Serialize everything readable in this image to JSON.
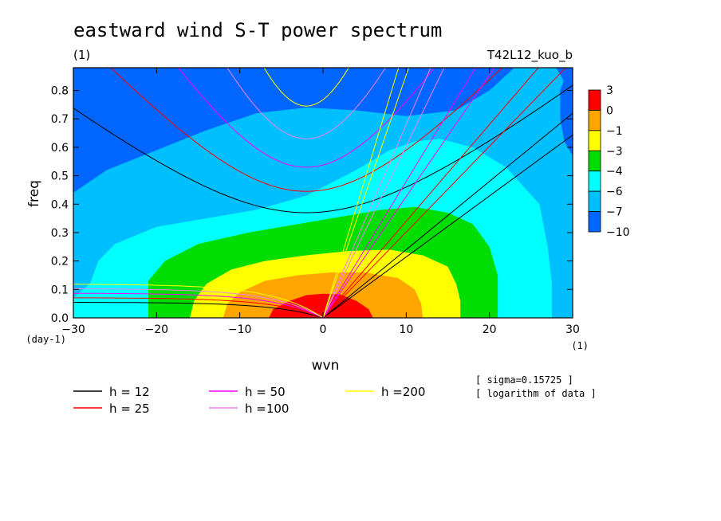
{
  "header": {
    "title": "eastward wind S-T power spectrum",
    "subtitle": "(1)",
    "experiment": "T42L12_kuo_b"
  },
  "notes": {
    "sigma": "[ sigma=0.15725 ]",
    "log": "[ logarithm of data ]"
  },
  "chart_data": {
    "type": "heatmap",
    "xlabel": "wvn",
    "ylabel": "freq",
    "x_unit": "(1)",
    "y_unit": "(day-1)",
    "xlim": [
      -30,
      30
    ],
    "ylim": [
      0,
      0.88
    ],
    "x_ticks": [
      -30,
      -20,
      -10,
      0,
      10,
      20,
      30
    ],
    "x_tick_labels": [
      "−30",
      "−20",
      "−10",
      "0",
      "10",
      "20",
      "30"
    ],
    "y_ticks": [
      0,
      0.1,
      0.2,
      0.3,
      0.4,
      0.5,
      0.6,
      0.7,
      0.8
    ],
    "y_tick_labels": [
      "0.0",
      "0.1",
      "0.2",
      "0.3",
      "0.4",
      "0.5",
      "0.6",
      "0.7",
      "0.8"
    ],
    "colorbar": {
      "labels": [
        "3",
        "0",
        "−1",
        "−3",
        "−4",
        "−6",
        "−7",
        "−10"
      ],
      "colors": [
        "#ff0000",
        "#ffa500",
        "#ffff00",
        "#00dd00",
        "#00ffff",
        "#00bfff",
        "#0066ff"
      ]
    },
    "regions": [
      {
        "level": "−7",
        "color": "#00bfff",
        "points": [
          [
            -30,
            0
          ],
          [
            -30,
            0.44
          ],
          [
            -26,
            0.52
          ],
          [
            -20,
            0.59
          ],
          [
            -14,
            0.66
          ],
          [
            -8,
            0.72
          ],
          [
            -2,
            0.74
          ],
          [
            4,
            0.73
          ],
          [
            10,
            0.71
          ],
          [
            16,
            0.73
          ],
          [
            20,
            0.8
          ],
          [
            23,
            0.88
          ],
          [
            28,
            0.88
          ],
          [
            29,
            0.83
          ],
          [
            30,
            0.78
          ],
          [
            30,
            0
          ]
        ]
      },
      {
        "level": "−6",
        "color": "#00ffff",
        "points": [
          [
            -30,
            0
          ],
          [
            -30,
            0.07
          ],
          [
            -28,
            0.12
          ],
          [
            -27,
            0.2
          ],
          [
            -25,
            0.26
          ],
          [
            -20,
            0.32
          ],
          [
            -14,
            0.35
          ],
          [
            -8,
            0.38
          ],
          [
            -2,
            0.43
          ],
          [
            4,
            0.52
          ],
          [
            8,
            0.59
          ],
          [
            11,
            0.62
          ],
          [
            14,
            0.63
          ],
          [
            18,
            0.6
          ],
          [
            22,
            0.53
          ],
          [
            26,
            0.4
          ],
          [
            27,
            0.25
          ],
          [
            27.5,
            0.12
          ],
          [
            27.5,
            0
          ]
        ]
      },
      {
        "level": "−4",
        "color": "#00dd00",
        "points": [
          [
            -21,
            0
          ],
          [
            -21,
            0.13
          ],
          [
            -19,
            0.2
          ],
          [
            -15,
            0.26
          ],
          [
            -9,
            0.3
          ],
          [
            -3,
            0.33
          ],
          [
            3,
            0.36
          ],
          [
            7,
            0.38
          ],
          [
            11,
            0.39
          ],
          [
            15,
            0.37
          ],
          [
            18,
            0.33
          ],
          [
            20,
            0.25
          ],
          [
            21,
            0.15
          ],
          [
            21,
            0
          ]
        ]
      },
      {
        "level": "−3",
        "color": "#ffff00",
        "points": [
          [
            -16,
            0
          ],
          [
            -15.5,
            0.06
          ],
          [
            -14,
            0.12
          ],
          [
            -11,
            0.17
          ],
          [
            -7,
            0.2
          ],
          [
            -2,
            0.22
          ],
          [
            3,
            0.235
          ],
          [
            8,
            0.24
          ],
          [
            12,
            0.22
          ],
          [
            15,
            0.18
          ],
          [
            16,
            0.12
          ],
          [
            16.5,
            0.06
          ],
          [
            16.5,
            0
          ]
        ]
      },
      {
        "level": "−1",
        "color": "#ffa500",
        "points": [
          [
            -12,
            0
          ],
          [
            -11.5,
            0.05
          ],
          [
            -10,
            0.09
          ],
          [
            -7,
            0.13
          ],
          [
            -3,
            0.15
          ],
          [
            1,
            0.16
          ],
          [
            5,
            0.16
          ],
          [
            9,
            0.14
          ],
          [
            11,
            0.1
          ],
          [
            11.8,
            0.05
          ],
          [
            12,
            0
          ]
        ]
      },
      {
        "level": "0",
        "color": "#ff0000",
        "points": [
          [
            -6.5,
            0
          ],
          [
            -6,
            0.03
          ],
          [
            -4,
            0.06
          ],
          [
            -2,
            0.08
          ],
          [
            0,
            0.085
          ],
          [
            2,
            0.083
          ],
          [
            4,
            0.06
          ],
          [
            5.5,
            0.03
          ],
          [
            6,
            0
          ]
        ]
      },
      {
        "level": "−10",
        "color": "#0066ff",
        "points": [
          [
            -30,
            0.52
          ],
          [
            -27,
            0.6
          ],
          [
            -24,
            0.7
          ],
          [
            -22,
            0.8
          ],
          [
            -21,
            0.88
          ],
          [
            -30,
            0.88
          ]
        ]
      },
      {
        "level": "−10",
        "color": "#0066ff",
        "points": [
          [
            29.5,
            0.88
          ],
          [
            28.5,
            0.8
          ],
          [
            28.5,
            0.7
          ],
          [
            29,
            0.62
          ],
          [
            30,
            0.57
          ],
          [
            30,
            0.88
          ]
        ]
      }
    ],
    "series": [
      {
        "name": "h = 12",
        "color": "#000000",
        "sym_min": 0.37,
        "k_max": 0.78,
        "steep_slope": 0.024,
        "steep_label": 0.0233
      },
      {
        "name": "h = 25",
        "color": "#ff0000",
        "sym_min": 0.445,
        "k_max": 0.95,
        "steep_slope": 0.034,
        "steep_label": 0.0328
      },
      {
        "name": "h = 50",
        "color": "#ff00ff",
        "sym_min": 0.53,
        "k_max": 1.1,
        "steep_slope": 0.048,
        "steep_label": 0.0464
      },
      {
        "name": "h =100",
        "color": "#ee82ee",
        "sym_min": 0.63,
        "k_max": 1.3,
        "steep_slope": 0.068,
        "steep_label": 0.0657
      },
      {
        "name": "h =200",
        "color": "#ffff00",
        "sym_min": 0.745,
        "k_max": 1.5,
        "steep_slope": 0.097,
        "steep_label": 0.0929
      }
    ]
  }
}
